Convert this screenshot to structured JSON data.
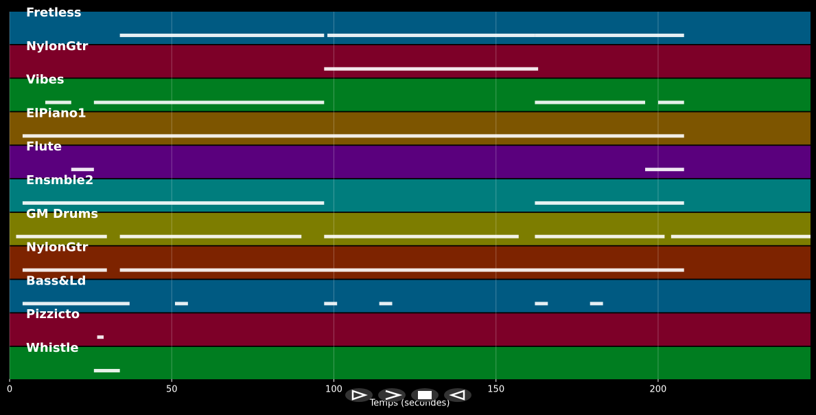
{
  "chart_data": {
    "type": "piano-roll",
    "x_label": "Temps (secondes)",
    "xlim": [
      0,
      247
    ],
    "xticks": [
      0,
      50,
      100,
      150,
      200
    ],
    "grid": true,
    "series": [
      {
        "name": "Fretless",
        "color": "#005a82",
        "notes": [
          [
            34,
            97
          ],
          [
            98,
            162
          ],
          [
            162,
            208
          ]
        ]
      },
      {
        "name": "NylonGtr",
        "color": "#7d0028",
        "notes": [
          [
            97,
            163
          ]
        ]
      },
      {
        "name": "Vibes",
        "color": "#007d20",
        "notes": [
          [
            11,
            19
          ],
          [
            26,
            97
          ],
          [
            162,
            196
          ],
          [
            200,
            208
          ]
        ]
      },
      {
        "name": "ElPiano1",
        "color": "#7d5500",
        "notes": [
          [
            4,
            208
          ]
        ]
      },
      {
        "name": "Flute",
        "color": "#5a007d",
        "notes": [
          [
            19,
            26
          ],
          [
            196,
            208
          ]
        ]
      },
      {
        "name": "Ensmble2",
        "color": "#007d7d",
        "notes": [
          [
            4,
            97
          ],
          [
            162,
            208
          ]
        ]
      },
      {
        "name": "GM Drums",
        "color": "#7d7d00",
        "notes": [
          [
            2,
            30
          ],
          [
            34,
            90
          ],
          [
            97,
            157
          ],
          [
            162,
            202
          ],
          [
            204,
            247
          ]
        ]
      },
      {
        "name": "NylonGtr",
        "color": "#7d2300",
        "notes": [
          [
            4,
            30
          ],
          [
            34,
            208
          ]
        ]
      },
      {
        "name": "Bass&Ld",
        "color": "#005a82",
        "notes": [
          [
            4,
            37
          ],
          [
            51,
            55
          ],
          [
            97,
            101
          ],
          [
            114,
            118
          ],
          [
            162,
            166
          ],
          [
            179,
            183
          ]
        ]
      },
      {
        "name": "Pizzicto",
        "color": "#7d0028",
        "notes": [
          [
            27,
            29
          ]
        ]
      },
      {
        "name": "Whistle",
        "color": "#007d20",
        "notes": [
          [
            26,
            34
          ]
        ]
      }
    ]
  }
}
